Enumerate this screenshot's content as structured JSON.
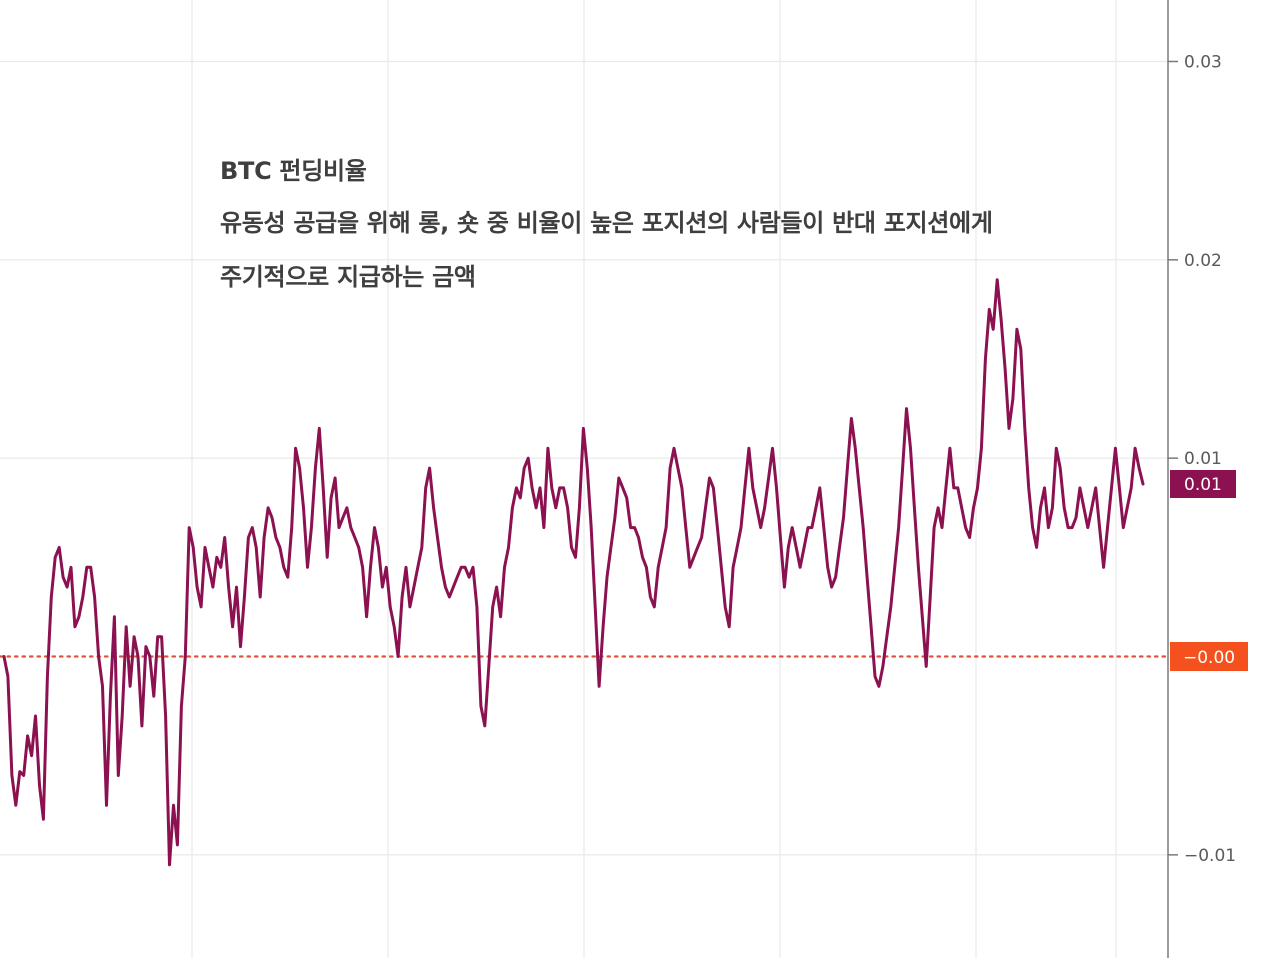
{
  "chart_data": {
    "type": "line",
    "title": "BTC 펀딩비율",
    "annotation_lines": [
      "유동성 공급을 위해 롱, 숏 중 비율이 높은 포지션의 사람들이 반대 포지션에게",
      "주기적으로 지급하는 금액"
    ],
    "xlabel": "",
    "ylabel": "",
    "y_ticks": [
      {
        "value": 0.03,
        "label": "0.03"
      },
      {
        "value": 0.02,
        "label": "0.02"
      },
      {
        "value": 0.01,
        "label": "0.01"
      },
      {
        "value": -0.01,
        "label": "−0.01"
      }
    ],
    "ylim": [
      -0.0152,
      0.0331
    ],
    "grid": true,
    "series": [
      {
        "color": "#8b1150",
        "values": [
          0.0,
          -0.001,
          -0.006,
          -0.0075,
          -0.0058,
          -0.006,
          -0.004,
          -0.005,
          -0.003,
          -0.0065,
          -0.0082,
          -0.001,
          0.003,
          0.005,
          0.0055,
          0.004,
          0.0035,
          0.0045,
          0.0015,
          0.002,
          0.003,
          0.0045,
          0.0045,
          0.003,
          0.0,
          -0.0015,
          -0.0075,
          -0.002,
          0.002,
          -0.006,
          -0.003,
          0.0015,
          -0.0015,
          0.001,
          0.0,
          -0.0035,
          0.0005,
          0.0,
          -0.002,
          0.001,
          0.001,
          -0.003,
          -0.0105,
          -0.0075,
          -0.0095,
          -0.0025,
          0.0,
          0.0065,
          0.0055,
          0.0035,
          0.0025,
          0.0055,
          0.0045,
          0.0035,
          0.005,
          0.0045,
          0.006,
          0.0035,
          0.0015,
          0.0035,
          0.0005,
          0.003,
          0.006,
          0.0065,
          0.0055,
          0.003,
          0.006,
          0.0075,
          0.007,
          0.006,
          0.0055,
          0.0045,
          0.004,
          0.0065,
          0.0105,
          0.0095,
          0.0075,
          0.0045,
          0.0065,
          0.0095,
          0.0115,
          0.0085,
          0.005,
          0.008,
          0.009,
          0.0065,
          0.007,
          0.0075,
          0.0065,
          0.006,
          0.0055,
          0.0045,
          0.002,
          0.0045,
          0.0065,
          0.0055,
          0.0035,
          0.0045,
          0.0025,
          0.0015,
          0.0,
          0.003,
          0.0045,
          0.0025,
          0.0035,
          0.0045,
          0.0055,
          0.0085,
          0.0095,
          0.0075,
          0.006,
          0.0045,
          0.0035,
          0.003,
          0.0035,
          0.004,
          0.0045,
          0.0045,
          0.004,
          0.0045,
          0.0025,
          -0.0025,
          -0.0035,
          -0.0005,
          0.0025,
          0.0035,
          0.002,
          0.0045,
          0.0055,
          0.0075,
          0.0085,
          0.008,
          0.0095,
          0.01,
          0.0085,
          0.0075,
          0.0085,
          0.0065,
          0.0105,
          0.0085,
          0.0075,
          0.0085,
          0.0085,
          0.0075,
          0.0055,
          0.005,
          0.0075,
          0.0115,
          0.0095,
          0.0065,
          0.0025,
          -0.0015,
          0.0015,
          0.004,
          0.0055,
          0.007,
          0.009,
          0.0085,
          0.008,
          0.0065,
          0.0065,
          0.006,
          0.005,
          0.0045,
          0.003,
          0.0025,
          0.0045,
          0.0055,
          0.0065,
          0.0095,
          0.0105,
          0.0095,
          0.0085,
          0.0065,
          0.0045,
          0.005,
          0.0055,
          0.006,
          0.0075,
          0.009,
          0.0085,
          0.0065,
          0.0045,
          0.0025,
          0.0015,
          0.0045,
          0.0055,
          0.0065,
          0.0085,
          0.0105,
          0.0085,
          0.0075,
          0.0065,
          0.0075,
          0.009,
          0.0105,
          0.0085,
          0.006,
          0.0035,
          0.0055,
          0.0065,
          0.0055,
          0.0045,
          0.0055,
          0.0065,
          0.0065,
          0.0075,
          0.0085,
          0.0065,
          0.0045,
          0.0035,
          0.004,
          0.0055,
          0.007,
          0.0095,
          0.012,
          0.0105,
          0.0085,
          0.0065,
          0.004,
          0.0015,
          -0.001,
          -0.0015,
          -0.0005,
          0.001,
          0.0025,
          0.0045,
          0.0065,
          0.0095,
          0.0125,
          0.0105,
          0.0075,
          0.0045,
          0.002,
          -0.0005,
          0.003,
          0.0065,
          0.0075,
          0.0065,
          0.0085,
          0.0105,
          0.0085,
          0.0085,
          0.0075,
          0.0065,
          0.006,
          0.0075,
          0.0085,
          0.0105,
          0.015,
          0.0175,
          0.0165,
          0.019,
          0.017,
          0.0145,
          0.0115,
          0.013,
          0.0165,
          0.0155,
          0.0115,
          0.0085,
          0.0065,
          0.0055,
          0.0075,
          0.0085,
          0.0065,
          0.0075,
          0.0105,
          0.0095,
          0.0075,
          0.0065,
          0.0065,
          0.007,
          0.0085,
          0.0075,
          0.0065,
          0.0075,
          0.0085,
          0.0065,
          0.0045,
          0.0065,
          0.0085,
          0.0105,
          0.0085,
          0.0065,
          0.0075,
          0.0085,
          0.0105,
          0.0095,
          0.0087
        ]
      }
    ],
    "price_labels": {
      "last_value": "0.01",
      "last_value_color": "#8b1150",
      "zero_line": "−0.00",
      "zero_line_color": "#f4511e"
    }
  }
}
